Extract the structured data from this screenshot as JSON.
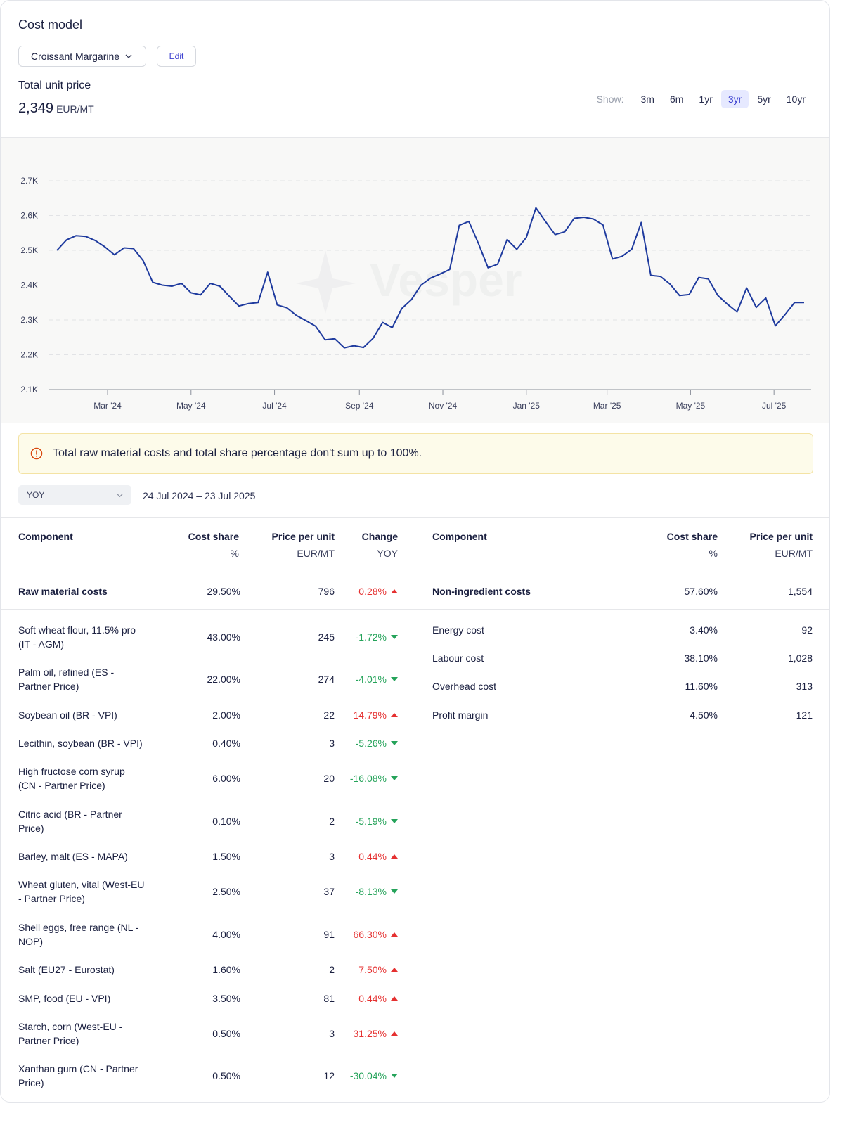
{
  "header": {
    "title": "Cost model",
    "model_select": "Croissant Margarine",
    "edit_label": "Edit",
    "total_unit_price_label": "Total unit price",
    "total_unit_price_value": "2,349",
    "total_unit_price_unit": "EUR/MT"
  },
  "range": {
    "show_label": "Show:",
    "options": [
      "3m",
      "6m",
      "1yr",
      "3yr",
      "5yr",
      "10yr"
    ],
    "active": "3yr"
  },
  "chart_data": {
    "type": "line",
    "watermark": "Vesper",
    "ylim": [
      2100,
      2700
    ],
    "yticks": [
      2100,
      2200,
      2300,
      2400,
      2500,
      2600,
      2700
    ],
    "ytick_labels": [
      "2.1K",
      "2.2K",
      "2.3K",
      "2.4K",
      "2.5K",
      "2.6K",
      "2.7K"
    ],
    "xtick_labels": [
      "Mar '24",
      "May '24",
      "Jul '24",
      "Sep '24",
      "Nov '24",
      "Jan '25",
      "Mar '25",
      "May '25",
      "Jul '25"
    ],
    "xtick_dates": [
      "2024-03-01",
      "2024-05-01",
      "2024-07-01",
      "2024-09-01",
      "2024-11-01",
      "2025-01-01",
      "2025-03-01",
      "2025-05-01",
      "2025-07-01"
    ],
    "grid": true,
    "color": "#1e3a9e",
    "series": [
      {
        "dates": [
          "2024-01-24",
          "2024-01-31",
          "2024-02-07",
          "2024-02-14",
          "2024-02-21",
          "2024-02-28",
          "2024-03-06",
          "2024-03-13",
          "2024-03-20",
          "2024-03-27",
          "2024-04-03",
          "2024-04-10",
          "2024-04-17",
          "2024-04-24",
          "2024-05-01",
          "2024-05-08",
          "2024-05-15",
          "2024-05-22",
          "2024-05-29",
          "2024-06-05",
          "2024-06-12",
          "2024-06-19",
          "2024-06-26",
          "2024-07-03",
          "2024-07-10",
          "2024-07-17",
          "2024-07-24",
          "2024-07-31",
          "2024-08-07",
          "2024-08-14",
          "2024-08-21",
          "2024-08-28",
          "2024-09-04",
          "2024-09-11",
          "2024-09-18",
          "2024-09-25",
          "2024-10-02",
          "2024-10-09",
          "2024-10-16",
          "2024-10-23",
          "2024-10-30",
          "2024-11-06",
          "2024-11-13",
          "2024-11-20",
          "2024-11-27",
          "2024-12-04",
          "2024-12-11",
          "2024-12-18",
          "2024-12-25",
          "2025-01-01",
          "2025-01-08",
          "2025-01-15",
          "2025-01-22",
          "2025-01-29",
          "2025-02-05",
          "2025-02-12",
          "2025-02-19",
          "2025-02-26",
          "2025-03-05",
          "2025-03-12",
          "2025-03-19",
          "2025-03-26",
          "2025-04-02",
          "2025-04-09",
          "2025-04-16",
          "2025-04-23",
          "2025-04-30",
          "2025-05-07",
          "2025-05-14",
          "2025-05-21",
          "2025-05-28",
          "2025-06-04",
          "2025-06-11",
          "2025-06-18",
          "2025-06-25",
          "2025-07-02",
          "2025-07-09",
          "2025-07-16",
          "2025-07-23"
        ],
        "values": [
          2500,
          2530,
          2542,
          2540,
          2528,
          2510,
          2487,
          2507,
          2505,
          2470,
          2408,
          2400,
          2397,
          2405,
          2378,
          2372,
          2405,
          2397,
          2368,
          2340,
          2347,
          2350,
          2437,
          2343,
          2335,
          2313,
          2298,
          2282,
          2243,
          2246,
          2220,
          2226,
          2221,
          2247,
          2293,
          2278,
          2333,
          2358,
          2400,
          2420,
          2432,
          2445,
          2572,
          2583,
          2520,
          2450,
          2460,
          2531,
          2503,
          2537,
          2622,
          2583,
          2545,
          2553,
          2592,
          2595,
          2590,
          2573,
          2475,
          2483,
          2503,
          2580,
          2428,
          2425,
          2403,
          2370,
          2373,
          2422,
          2418,
          2370,
          2345,
          2323,
          2392,
          2336,
          2363,
          2283,
          2315,
          2350,
          2350
        ]
      }
    ]
  },
  "warning": {
    "text": "Total raw material costs and total share percentage don't sum up to 100%."
  },
  "period": {
    "select": "YOY",
    "date_range": "24 Jul 2024 – 23 Jul 2025"
  },
  "left_table": {
    "headers": [
      "Component",
      "Cost share",
      "Price per unit",
      "Change"
    ],
    "subheaders": [
      "",
      "%",
      "EUR/MT",
      "YOY"
    ],
    "total": {
      "name": "Raw material costs",
      "share": "29.50%",
      "price": "796",
      "change": "0.28%",
      "dir": "up"
    },
    "rows": [
      {
        "name1": "Soft wheat flour, 11.5% pro",
        "name2": "(IT - AGM)",
        "share": "43.00%",
        "price": "245",
        "change": "-1.72%",
        "dir": "down"
      },
      {
        "name1": "Palm oil, refined (ES -",
        "name2": "Partner Price)",
        "share": "22.00%",
        "price": "274",
        "change": "-4.01%",
        "dir": "down"
      },
      {
        "name1": "Soybean oil (BR - VPI)",
        "name2": "",
        "share": "2.00%",
        "price": "22",
        "change": "14.79%",
        "dir": "up"
      },
      {
        "name1": "Lecithin, soybean (BR - VPI)",
        "name2": "",
        "share": "0.40%",
        "price": "3",
        "change": "-5.26%",
        "dir": "down"
      },
      {
        "name1": "High fructose corn syrup",
        "name2": "(CN - Partner Price)",
        "share": "6.00%",
        "price": "20",
        "change": "-16.08%",
        "dir": "down"
      },
      {
        "name1": "Citric acid (BR - Partner",
        "name2": "Price)",
        "share": "0.10%",
        "price": "2",
        "change": "-5.19%",
        "dir": "down"
      },
      {
        "name1": "Barley, malt (ES - MAPA)",
        "name2": "",
        "share": "1.50%",
        "price": "3",
        "change": "0.44%",
        "dir": "up"
      },
      {
        "name1": "Wheat gluten, vital (West-EU",
        "name2": "- Partner Price)",
        "share": "2.50%",
        "price": "37",
        "change": "-8.13%",
        "dir": "down"
      },
      {
        "name1": "Shell eggs, free range (NL -",
        "name2": "NOP)",
        "share": "4.00%",
        "price": "91",
        "change": "66.30%",
        "dir": "up"
      },
      {
        "name1": "Salt (EU27 - Eurostat)",
        "name2": "",
        "share": "1.60%",
        "price": "2",
        "change": "7.50%",
        "dir": "up"
      },
      {
        "name1": "SMP, food (EU - VPI)",
        "name2": "",
        "share": "3.50%",
        "price": "81",
        "change": "0.44%",
        "dir": "up"
      },
      {
        "name1": "Starch, corn (West-EU -",
        "name2": "Partner Price)",
        "share": "0.50%",
        "price": "3",
        "change": "31.25%",
        "dir": "up"
      },
      {
        "name1": "Xanthan gum (CN - Partner",
        "name2": "Price)",
        "share": "0.50%",
        "price": "12",
        "change": "-30.04%",
        "dir": "down"
      }
    ]
  },
  "right_table": {
    "headers": [
      "Component",
      "Cost share",
      "Price per unit"
    ],
    "subheaders": [
      "",
      "%",
      "EUR/MT"
    ],
    "total": {
      "name": "Non-ingredient costs",
      "share": "57.60%",
      "price": "1,554"
    },
    "rows": [
      {
        "name": "Energy cost",
        "share": "3.40%",
        "price": "92"
      },
      {
        "name": "Labour cost",
        "share": "38.10%",
        "price": "1,028"
      },
      {
        "name": "Overhead cost",
        "share": "11.60%",
        "price": "313"
      },
      {
        "name": "Profit margin",
        "share": "4.50%",
        "price": "121"
      }
    ]
  }
}
